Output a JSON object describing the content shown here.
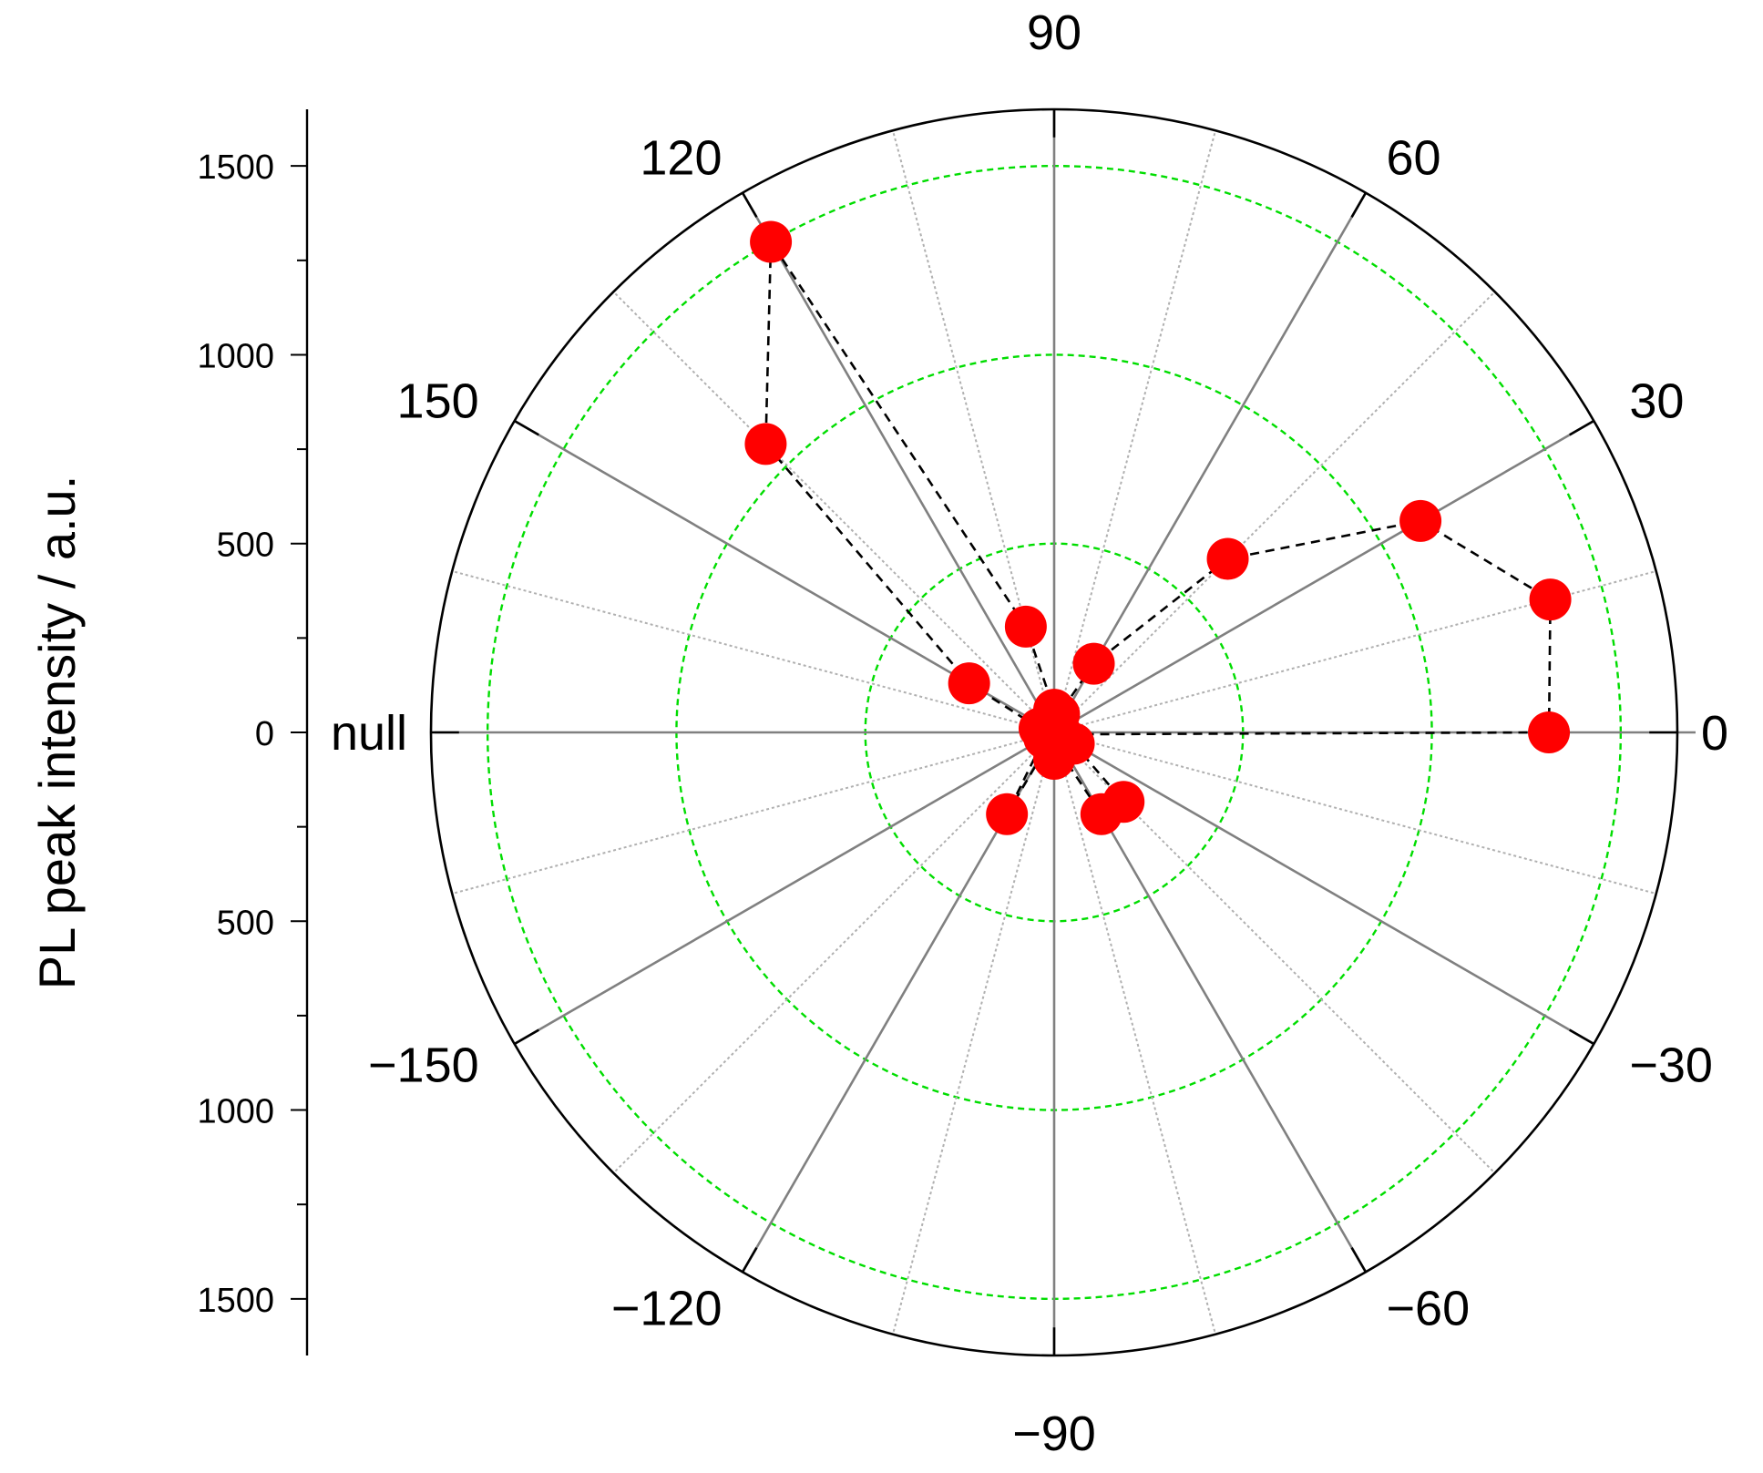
{
  "chart_data": {
    "type": "scatter",
    "polar": true,
    "ylabel": "PL peak intensity / a.u.",
    "radial_axis": {
      "tick_labels_upper": [
        "1500",
        "1000",
        "500",
        "0"
      ],
      "tick_labels_lower": [
        "500",
        "1000",
        "1500"
      ],
      "range": [
        0,
        1650
      ],
      "major_step": 500,
      "minor_step": 250
    },
    "angular_axis": {
      "unit": "degrees",
      "major_ticks": [
        0,
        30,
        60,
        90,
        120,
        150,
        180,
        -150,
        -120,
        -90,
        -60,
        -30
      ],
      "tick_labels": [
        "0",
        "30",
        "60",
        "90",
        "120",
        "150",
        "null",
        "−150",
        "−120",
        "−90",
        "−60",
        "−30"
      ],
      "minor_spokes_every": 15
    },
    "grid": {
      "major_spokes": true,
      "minor_spokes": true,
      "rings": [
        500,
        1000,
        1500
      ]
    },
    "series": [
      {
        "marker": "circle",
        "line": "dashed",
        "points": [
          {
            "theta": 0,
            "r": 1310
          },
          {
            "theta": 15,
            "r": 1360
          },
          {
            "theta": 30,
            "r": 1120
          },
          {
            "theta": 45,
            "r": 650
          },
          {
            "theta": 60,
            "r": 210
          },
          {
            "theta": 75,
            "r": 50
          },
          {
            "theta": 90,
            "r": 60
          },
          {
            "theta": 105,
            "r": 290
          },
          {
            "theta": 120,
            "r": 1500
          },
          {
            "theta": 135,
            "r": 1080
          },
          {
            "theta": 150,
            "r": 260
          },
          {
            "theta": 165,
            "r": 40
          },
          {
            "theta": 180,
            "r": 30
          },
          {
            "theta": -165,
            "r": 20
          },
          {
            "theta": -150,
            "r": 30
          },
          {
            "theta": -120,
            "r": 250
          },
          {
            "theta": -105,
            "r": 10
          },
          {
            "theta": -90,
            "r": 70
          },
          {
            "theta": -75,
            "r": 50
          },
          {
            "theta": -60,
            "r": 250
          },
          {
            "theta": -45,
            "r": 260
          },
          {
            "theta": -30,
            "r": 60
          },
          {
            "theta": -15,
            "r": 20
          }
        ]
      }
    ],
    "colors": {
      "marker": "#ff0000",
      "connector": "#000000",
      "ring": "#00dd00",
      "major_spoke": "#808080",
      "minor_spoke": "#b0b0b0",
      "frame": "#000000"
    }
  }
}
